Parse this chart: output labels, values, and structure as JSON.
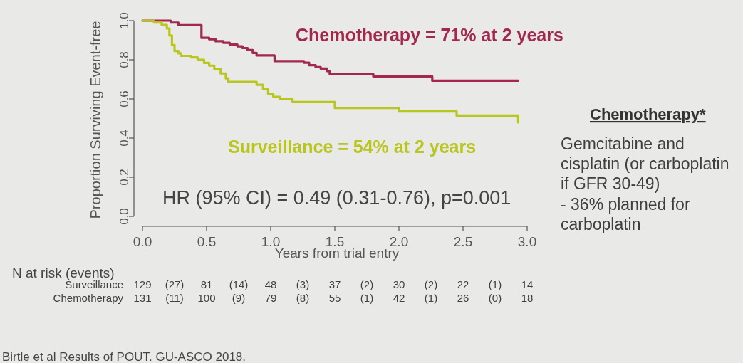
{
  "chart_data": {
    "type": "step",
    "xlabel": "Years from trial entry",
    "ylabel": "Proportion Surviving Event-free",
    "xlim": [
      0,
      3
    ],
    "xticks": [
      {
        "value": 0,
        "label": "0.0"
      },
      {
        "value": 0.5,
        "label": "0.5"
      },
      {
        "value": 1,
        "label": "1.0"
      },
      {
        "value": 1.5,
        "label": "1.5"
      },
      {
        "value": 2,
        "label": "2.0"
      },
      {
        "value": 2.5,
        "label": "2.5"
      },
      {
        "value": 3,
        "label": "3.0"
      }
    ],
    "ylim": [
      0,
      1
    ],
    "yticks": [
      {
        "value": 0,
        "label": "0.0"
      },
      {
        "value": 0.2,
        "label": "0.2"
      },
      {
        "value": 0.4,
        "label": "0.4"
      },
      {
        "value": 0.6,
        "label": "0.6"
      },
      {
        "value": 0.8,
        "label": "0.8"
      },
      {
        "value": 1,
        "label": "1.0"
      }
    ],
    "series": [
      {
        "name": "Chemotherapy = 71% at 2 years",
        "color": "#a2284c",
        "x": [
          0,
          0.22,
          0.28,
          0.46,
          0.52,
          0.57,
          0.63,
          0.68,
          0.74,
          0.78,
          0.82,
          0.86,
          0.89,
          1.03,
          1.26,
          1.3,
          1.35,
          1.39,
          1.44,
          1.46,
          1.8,
          2.26,
          2.93
        ],
        "values": [
          1.0,
          0.99,
          0.977,
          0.912,
          0.905,
          0.895,
          0.887,
          0.878,
          0.869,
          0.86,
          0.85,
          0.835,
          0.822,
          0.793,
          0.785,
          0.772,
          0.762,
          0.755,
          0.742,
          0.727,
          0.715,
          0.693,
          0.693
        ]
      },
      {
        "name": "Surveillance = 54% at 2 years",
        "color": "#b9c61e",
        "x": [
          0,
          0.09,
          0.15,
          0.19,
          0.21,
          0.23,
          0.25,
          0.28,
          0.3,
          0.38,
          0.43,
          0.48,
          0.52,
          0.56,
          0.61,
          0.65,
          0.67,
          0.89,
          0.94,
          0.98,
          1.02,
          1.07,
          1.17,
          1.5,
          2.0,
          2.45,
          2.93
        ],
        "values": [
          1.0,
          0.99,
          0.978,
          0.96,
          0.924,
          0.875,
          0.845,
          0.833,
          0.82,
          0.812,
          0.8,
          0.784,
          0.77,
          0.754,
          0.73,
          0.705,
          0.687,
          0.672,
          0.651,
          0.627,
          0.611,
          0.6,
          0.584,
          0.554,
          0.536,
          0.515,
          0.48
        ]
      }
    ],
    "annotations": [
      "HR (95% CI) = 0.49 (0.31-0.76), p=0.001",
      "N at risk (events)",
      "Surveillance 129 (27) 81 (14) 48 (3) 37 (2) 30 (2) 22 (1) 14",
      "Chemotherapy 131 (11) 100 (9) 79 (8) 55 (1) 42 (1) 26 (0) 18",
      "Chemotherapy*",
      "Gemcitabine and",
      "cisplatin (or carboplatin",
      "if GFR 30-49)",
      "- 36% planned for",
      "carboplatin",
      "Birtle et al Results of POUT. GU-ASCO 2018."
    ]
  }
}
